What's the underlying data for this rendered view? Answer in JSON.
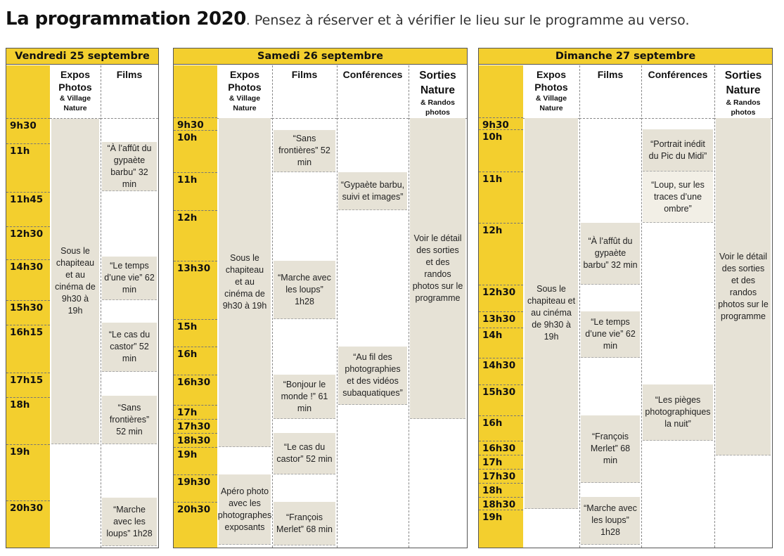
{
  "header": {
    "title": "La programmation 2020",
    "subtitle": ". Pensez à réserver et à vérifier le lieu sur le programme au verso."
  },
  "columns": {
    "expos": "Expos",
    "photos": "Photos",
    "village": "& Village",
    "nature": "Nature",
    "films": "Films",
    "conferences": "Conférences",
    "sorties": "Sorties",
    "sorties_nature": "Nature",
    "randos": "& Randos",
    "randos_photos": "photos"
  },
  "friday": {
    "title": "Vendredi 25 septembre",
    "times": [
      "9h30",
      "11h",
      "11h45",
      "12h30",
      "14h30",
      "15h30",
      "16h15",
      "17h15",
      "18h",
      "19h",
      "20h30"
    ],
    "expos": "Sous le chapiteau et au cinéma de 9h30 à 19h",
    "films": [
      "“À l’affût du gypaète barbu” 32 min",
      "“Le temps d’une vie” 62 min",
      "“Le cas du castor” 52 min",
      "“Sans frontières” 52 min",
      "“Marche avec les loups” 1h28"
    ]
  },
  "saturday": {
    "title": "Samedi 26 septembre",
    "times": [
      "9h30",
      "10h",
      "11h",
      "12h",
      "13h30",
      "15h",
      "16h",
      "16h30",
      "17h",
      "17h30",
      "18h30",
      "19h",
      "19h30",
      "20h30"
    ],
    "expos": "Sous le chapiteau et au cinéma de 9h30 à 19h",
    "apero": "Apéro photo avec les photographes exposants",
    "films": [
      "“Sans frontières” 52 min",
      "“Marche avec les loups” 1h28",
      "“Bonjour le monde !” 61 min",
      "“Le cas du castor” 52 min",
      "“François Merlet” 68 min"
    ],
    "conferences": [
      "“Gypaète barbu, suivi et images”",
      "“Au fil des photographies et des vidéos subaquatiques”"
    ],
    "sorties": "Voir le détail des sorties et des randos photos sur le programme"
  },
  "sunday": {
    "title": "Dimanche 27 septembre",
    "times": [
      "9h30",
      "10h",
      "11h",
      "12h",
      "12h30",
      "13h30",
      "14h",
      "14h30",
      "15h30",
      "16h",
      "16h30",
      "17h",
      "17h30",
      "18h",
      "18h30",
      "19h"
    ],
    "expos": "Sous le chapiteau et au cinéma de 9h30 à 19h",
    "films": [
      "“À l’affût du gypaète barbu” 32 min",
      "“Le temps d’une vie” 62 min",
      "“François Merlet” 68 min",
      "“Marche avec les loups” 1h28"
    ],
    "conferences": [
      "“Portrait inédit du Pic du Midi”",
      "“Loup, sur les traces d’une ombre”",
      "“Les pièges photographiques la nuit”"
    ],
    "sorties": "Voir le détail des sorties et des randos photos sur le programme"
  },
  "colors": {
    "accent": "#f3cf2e",
    "block": "#e6e2d6",
    "block_light": "#f2efe6"
  }
}
